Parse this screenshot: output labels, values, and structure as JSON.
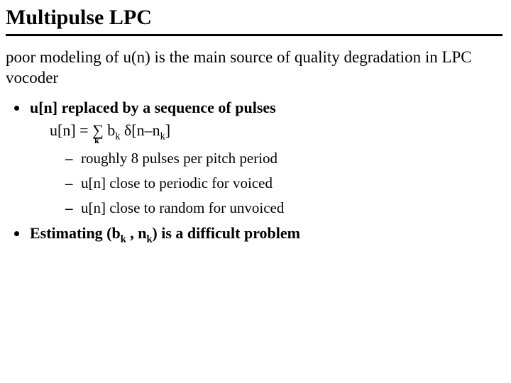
{
  "title": "Multipulse LPC",
  "intro": "poor modeling of u(n) is the main source of quality degradation in LPC vocoder",
  "bullet1_head": "u[n] replaced by a sequence of pulses",
  "formula": {
    "lhs": "u[n] = ",
    "sigma": "∑",
    "sigma_sub": "k",
    "rhs_b": " b",
    "rhs_bk": "k",
    "rhs_delta": " δ[n–n",
    "rhs_nk": "k",
    "rhs_close": "]"
  },
  "sub1": "roughly 8 pulses per pitch period",
  "sub2": "u[n] close to periodic for voiced",
  "sub3": "u[n] close to random for unvoiced",
  "bullet2_pre": "Estimating (b",
  "bullet2_bk": "k",
  "bullet2_mid": " , n",
  "bullet2_nk": "k",
  "bullet2_post": ") is a difficult problem",
  "colors": {
    "text": "#000000",
    "background": "#ffffff",
    "rule": "#000000"
  },
  "fonts": {
    "family": "Times New Roman",
    "title_size_pt": 22,
    "body_size_pt": 17
  }
}
